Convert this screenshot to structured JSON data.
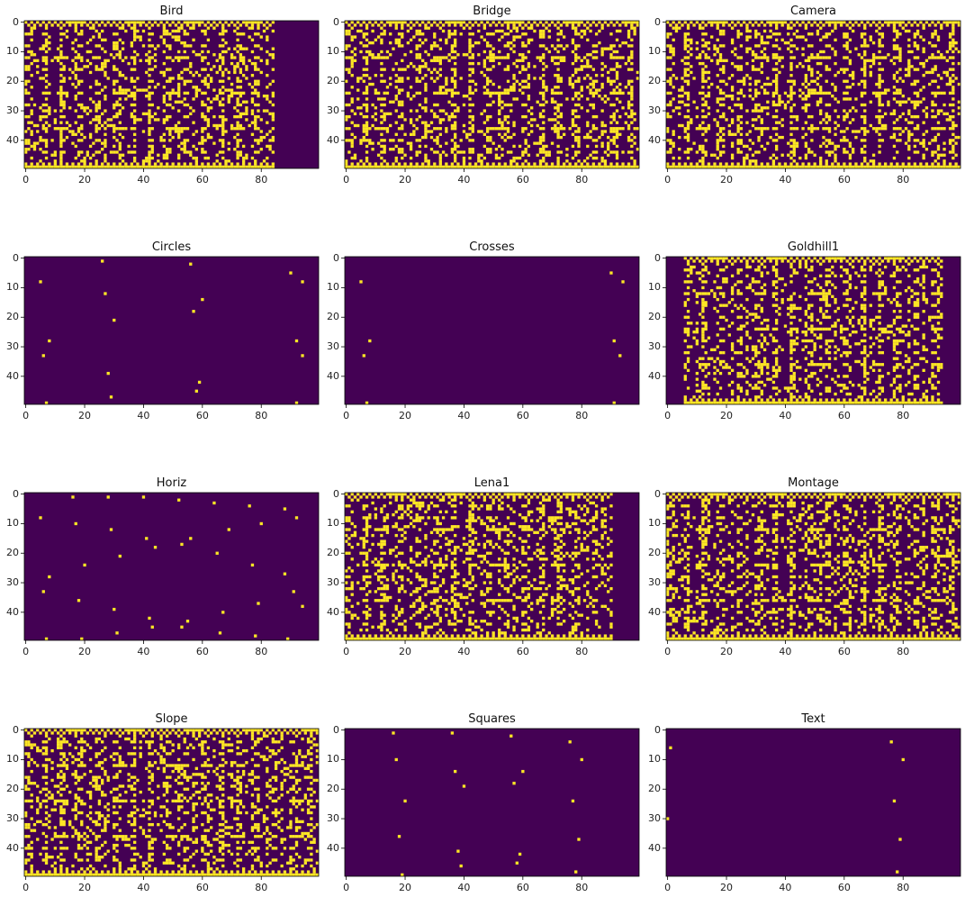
{
  "chart_data": {
    "type": "heatmap",
    "rows": 50,
    "cols": 100,
    "x_ticks": [
      0,
      20,
      40,
      60,
      80
    ],
    "y_ticks": [
      0,
      10,
      20,
      30,
      40
    ],
    "colors": {
      "off": "#440154",
      "on": "#fde725"
    },
    "panels": [
      {
        "title": "Bird",
        "pattern": "dense",
        "col_extent": 85,
        "col_start": 0,
        "bottom_band": true,
        "seed": 11
      },
      {
        "title": "Bridge",
        "pattern": "dense",
        "col_extent": 100,
        "col_start": 0,
        "bottom_band": true,
        "seed": 23
      },
      {
        "title": "Camera",
        "pattern": "dense",
        "col_extent": 100,
        "col_start": 0,
        "bottom_band": true,
        "seed": 37
      },
      {
        "title": "Circles",
        "pattern": "sparse",
        "points": [
          [
            1,
            26
          ],
          [
            2,
            56
          ],
          [
            5,
            90
          ],
          [
            8,
            5
          ],
          [
            8,
            94
          ],
          [
            12,
            27
          ],
          [
            14,
            60
          ],
          [
            18,
            57
          ],
          [
            21,
            30
          ],
          [
            28,
            8
          ],
          [
            28,
            92
          ],
          [
            33,
            6
          ],
          [
            33,
            94
          ],
          [
            39,
            28
          ],
          [
            42,
            59
          ],
          [
            45,
            58
          ],
          [
            47,
            29
          ],
          [
            49,
            7
          ],
          [
            49,
            92
          ]
        ]
      },
      {
        "title": "Crosses",
        "pattern": "sparse",
        "points": [
          [
            5,
            90
          ],
          [
            8,
            5
          ],
          [
            8,
            94
          ],
          [
            28,
            8
          ],
          [
            28,
            91
          ],
          [
            33,
            6
          ],
          [
            33,
            93
          ],
          [
            49,
            7
          ],
          [
            49,
            91
          ]
        ]
      },
      {
        "title": "Goldhill1",
        "pattern": "dense",
        "col_extent": 94,
        "col_start": 6,
        "bottom_band": true,
        "seed": 51
      },
      {
        "title": "Horiz",
        "pattern": "sparse",
        "points": [
          [
            1,
            16
          ],
          [
            1,
            28
          ],
          [
            1,
            40
          ],
          [
            2,
            52
          ],
          [
            3,
            64
          ],
          [
            4,
            76
          ],
          [
            5,
            88
          ],
          [
            8,
            5
          ],
          [
            8,
            92
          ],
          [
            10,
            17
          ],
          [
            10,
            80
          ],
          [
            12,
            29
          ],
          [
            12,
            69
          ],
          [
            15,
            41
          ],
          [
            15,
            56
          ],
          [
            17,
            53
          ],
          [
            18,
            44
          ],
          [
            20,
            65
          ],
          [
            21,
            32
          ],
          [
            24,
            20
          ],
          [
            24,
            77
          ],
          [
            27,
            88
          ],
          [
            28,
            8
          ],
          [
            33,
            6
          ],
          [
            33,
            91
          ],
          [
            36,
            18
          ],
          [
            37,
            79
          ],
          [
            38,
            94
          ],
          [
            39,
            30
          ],
          [
            40,
            67
          ],
          [
            42,
            42
          ],
          [
            43,
            55
          ],
          [
            45,
            43
          ],
          [
            45,
            53
          ],
          [
            47,
            31
          ],
          [
            47,
            66
          ],
          [
            48,
            78
          ],
          [
            49,
            7
          ],
          [
            49,
            19
          ],
          [
            49,
            89
          ]
        ]
      },
      {
        "title": "Lena1",
        "pattern": "dense",
        "col_extent": 91,
        "col_start": 0,
        "bottom_band": true,
        "seed": 67
      },
      {
        "title": "Montage",
        "pattern": "dense",
        "col_extent": 100,
        "col_start": 0,
        "bottom_band": true,
        "seed": 79
      },
      {
        "title": "Slope",
        "pattern": "dense",
        "col_extent": 100,
        "col_start": 0,
        "bottom_band": true,
        "seed": 83
      },
      {
        "title": "Squares",
        "pattern": "sparse",
        "points": [
          [
            1,
            16
          ],
          [
            1,
            36
          ],
          [
            2,
            56
          ],
          [
            4,
            76
          ],
          [
            10,
            17
          ],
          [
            10,
            80
          ],
          [
            14,
            37
          ],
          [
            14,
            60
          ],
          [
            18,
            57
          ],
          [
            19,
            40
          ],
          [
            24,
            20
          ],
          [
            24,
            77
          ],
          [
            36,
            18
          ],
          [
            37,
            79
          ],
          [
            41,
            38
          ],
          [
            42,
            59
          ],
          [
            45,
            58
          ],
          [
            46,
            39
          ],
          [
            48,
            78
          ],
          [
            49,
            19
          ]
        ]
      },
      {
        "title": "Text",
        "pattern": "sparse",
        "points": [
          [
            4,
            76
          ],
          [
            6,
            1
          ],
          [
            10,
            80
          ],
          [
            24,
            77
          ],
          [
            30,
            0
          ],
          [
            37,
            79
          ],
          [
            48,
            78
          ]
        ]
      }
    ]
  }
}
